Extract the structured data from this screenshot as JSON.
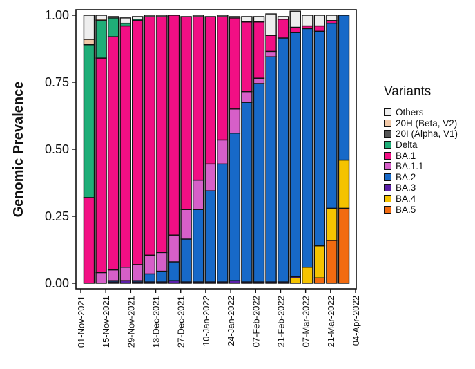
{
  "chart_data": {
    "type": "bar",
    "stacked": true,
    "ylabel": "Genomic Prevalence",
    "ylim": [
      0,
      1
    ],
    "yticks": [
      "0.00",
      "0.25",
      "0.50",
      "0.75",
      "1.00"
    ],
    "x_tick_labels": [
      "01-Nov-2021",
      "15-Nov-2021",
      "29-Nov-2021",
      "13-Dec-2021",
      "27-Dec-2021",
      "10-Jan-2022",
      "24-Jan-2022",
      "07-Feb-2022",
      "21-Feb-2022",
      "07-Mar-2022",
      "21-Mar-2022",
      "04-Apr-2022"
    ],
    "bar_count": 22,
    "legend_title": "Variants",
    "series": [
      {
        "name": "BA.5",
        "color": "#F26B10",
        "values": [
          0,
          0,
          0,
          0,
          0,
          0,
          0,
          0,
          0,
          0,
          0,
          0,
          0,
          0,
          0,
          0,
          0,
          0,
          0,
          0.02,
          0.16,
          0.28
        ]
      },
      {
        "name": "BA.4",
        "color": "#F5C300",
        "values": [
          0,
          0,
          0,
          0,
          0,
          0,
          0,
          0,
          0,
          0,
          0,
          0,
          0,
          0,
          0,
          0,
          0,
          0.02,
          0.06,
          0.12,
          0.12,
          0.18
        ]
      },
      {
        "name": "BA.3",
        "color": "#5B1FA8",
        "values": [
          0,
          0,
          0.005,
          0.01,
          0.005,
          0.005,
          0.005,
          0.01,
          0.005,
          0.005,
          0.005,
          0.005,
          0.01,
          0.005,
          0.005,
          0.005,
          0.005,
          0.005,
          0,
          0,
          0,
          0
        ]
      },
      {
        "name": "BA.2",
        "color": "#1769C8",
        "values": [
          0,
          0,
          0.005,
          0,
          0.005,
          0.03,
          0.04,
          0.07,
          0.16,
          0.27,
          0.34,
          0.44,
          0.55,
          0.67,
          0.74,
          0.84,
          0.91,
          0.91,
          0.89,
          0.8,
          0.69,
          0.54
        ]
      },
      {
        "name": "BA.1.1",
        "color": "#D65FC8",
        "values": [
          0,
          0.04,
          0.04,
          0.05,
          0.06,
          0.07,
          0.07,
          0.1,
          0.11,
          0.11,
          0.1,
          0.09,
          0.09,
          0.04,
          0.02,
          0.02,
          0,
          0,
          0,
          0,
          0,
          0
        ]
      },
      {
        "name": "BA.1",
        "color": "#F20F84",
        "values": [
          0.32,
          0.8,
          0.87,
          0.9,
          0.91,
          0.89,
          0.88,
          0.82,
          0.72,
          0.61,
          0.55,
          0.46,
          0.34,
          0.26,
          0.21,
          0.06,
          0.07,
          0.02,
          0.01,
          0.02,
          0.01,
          0
        ]
      },
      {
        "name": "Delta",
        "color": "#1FAE78",
        "values": [
          0.57,
          0.14,
          0.07,
          0.01,
          0.005,
          0,
          0,
          0,
          0,
          0,
          0,
          0,
          0,
          0,
          0,
          0,
          0,
          0,
          0,
          0,
          0,
          0
        ]
      },
      {
        "name": "20I (Alpha, V1)",
        "color": "#555555",
        "values": [
          0,
          0,
          0,
          0,
          0,
          0,
          0,
          0,
          0,
          0,
          0,
          0,
          0,
          0,
          0,
          0,
          0,
          0,
          0,
          0,
          0,
          0
        ]
      },
      {
        "name": "20H (Beta, V2)",
        "color": "#F2C9A8",
        "values": [
          0.02,
          0.005,
          0,
          0,
          0,
          0,
          0,
          0,
          0,
          0,
          0,
          0,
          0,
          0,
          0,
          0,
          0,
          0,
          0,
          0,
          0,
          0
        ]
      },
      {
        "name": "Others",
        "color": "#EEEEEE",
        "values": [
          0.09,
          0.015,
          0.005,
          0.02,
          0.01,
          0.005,
          0.005,
          0,
          0,
          0.005,
          0,
          0.005,
          0.005,
          0.02,
          0.02,
          0.08,
          0.01,
          0.06,
          0.04,
          0.04,
          0.02,
          0
        ]
      }
    ]
  }
}
